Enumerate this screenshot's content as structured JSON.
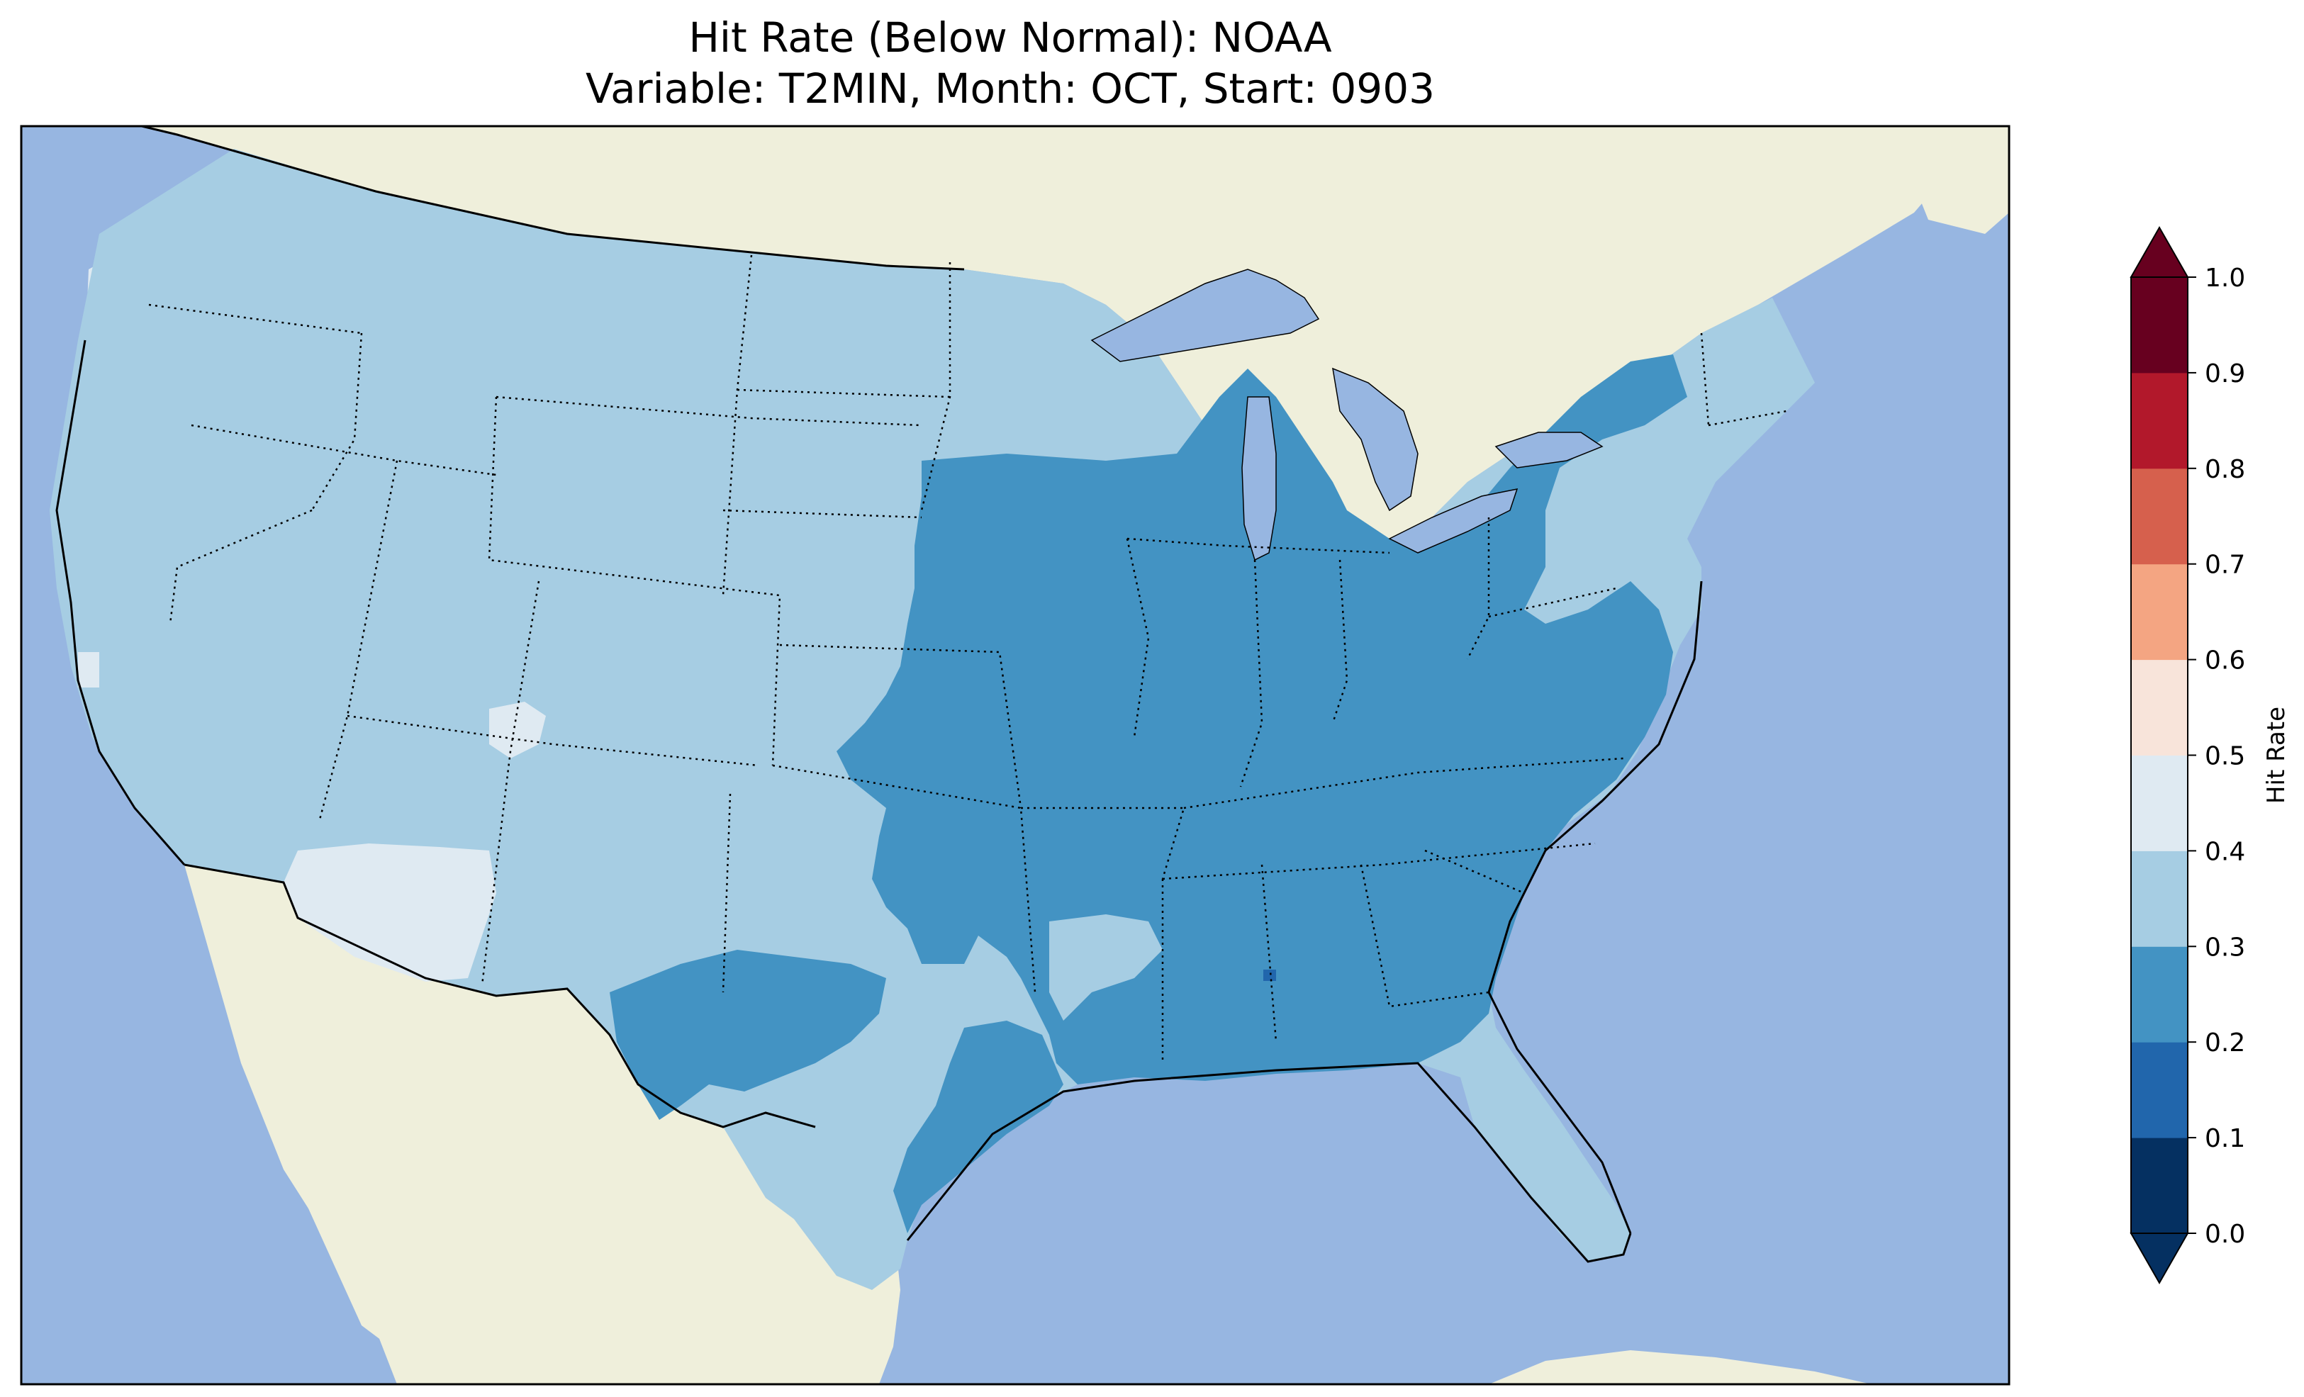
{
  "title": {
    "line1": "Hit Rate (Below Normal): NOAA",
    "line2": "Variable: T2MIN, Month: OCT, Start: 0903"
  },
  "map": {
    "region": "Contiguous United States",
    "ocean_color": "#97b6e1",
    "land_color": "#efefdb",
    "state_border_style": "dotted",
    "coastline_color": "#000000"
  },
  "colorbar": {
    "label": "Hit Rate",
    "extend": "both",
    "ticks": [
      "0.0",
      "0.1",
      "0.2",
      "0.3",
      "0.4",
      "0.5",
      "0.6",
      "0.7",
      "0.8",
      "0.9",
      "1.0"
    ],
    "bins": [
      {
        "range": [
          0.0,
          0.1
        ],
        "color": "#053061"
      },
      {
        "range": [
          0.1,
          0.2
        ],
        "color": "#2166ac"
      },
      {
        "range": [
          0.2,
          0.3
        ],
        "color": "#4393c3"
      },
      {
        "range": [
          0.3,
          0.4
        ],
        "color": "#a6cde3"
      },
      {
        "range": [
          0.4,
          0.5
        ],
        "color": "#dfeaf2"
      },
      {
        "range": [
          0.5,
          0.6
        ],
        "color": "#f8e4da"
      },
      {
        "range": [
          0.6,
          0.7
        ],
        "color": "#f4a582"
      },
      {
        "range": [
          0.7,
          0.8
        ],
        "color": "#d6604d"
      },
      {
        "range": [
          0.8,
          0.9
        ],
        "color": "#b2182b"
      },
      {
        "range": [
          0.9,
          1.0
        ],
        "color": "#67001f"
      }
    ]
  },
  "field_regions": [
    {
      "region": "Pacific Northwest / Great Basin interior",
      "bin": "0.4-0.5"
    },
    {
      "region": "Desert Southwest (southern Nevada, western Arizona)",
      "bin": "0.4-0.5"
    },
    {
      "region": "West, Plains, Northeast, Florida",
      "bin": "0.3-0.4"
    },
    {
      "region": "Midwest, Southeast, south-central Texas, Great Lakes",
      "bin": "0.2-0.3"
    }
  ]
}
